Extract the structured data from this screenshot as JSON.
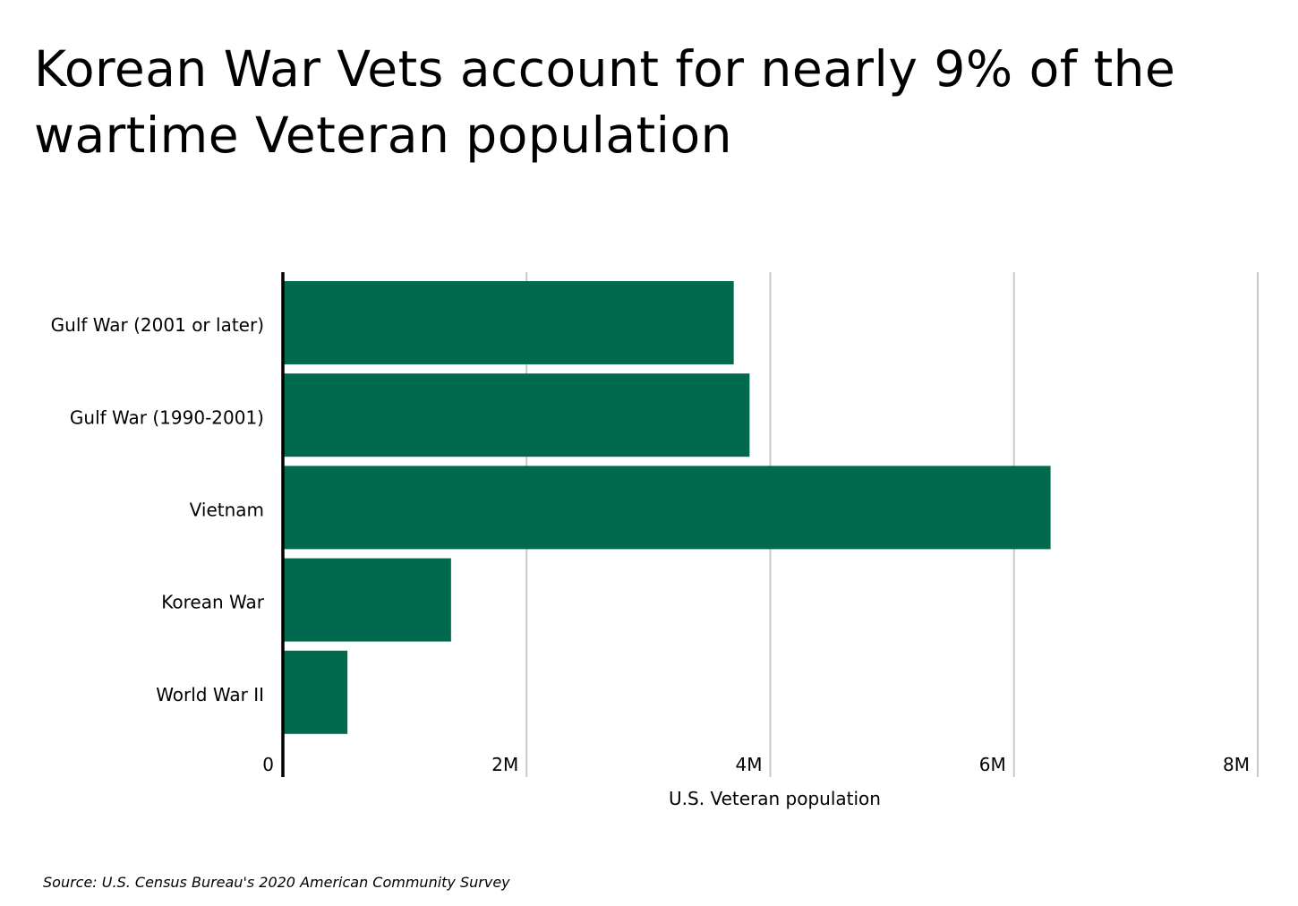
{
  "title": {
    "line1": "Korean War Vets account for nearly 9% of the",
    "line2": "wartime Veteran population"
  },
  "source": "Source:  U.S. Census Bureau's 2020 American Community Survey",
  "colors": {
    "bar": "#006a4e",
    "grid": "#c8c8c8",
    "axis": "#000000",
    "text": "#000000"
  },
  "chart_data": {
    "type": "bar",
    "orientation": "horizontal",
    "categories": [
      "Gulf War (2001 or later)",
      "Gulf War (1990-2001)",
      "Vietnam",
      "Korean War",
      "World War II"
    ],
    "values": [
      3700000,
      3830000,
      6300000,
      1380000,
      530000
    ],
    "xlabel": "U.S. Veteran population",
    "ylabel": "",
    "xlim": [
      0,
      8000000
    ],
    "xticks": [
      0,
      2000000,
      4000000,
      6000000,
      8000000
    ],
    "xtick_labels": [
      "0",
      "2M",
      "4M",
      "6M",
      "8M"
    ],
    "grid": "vertical"
  }
}
